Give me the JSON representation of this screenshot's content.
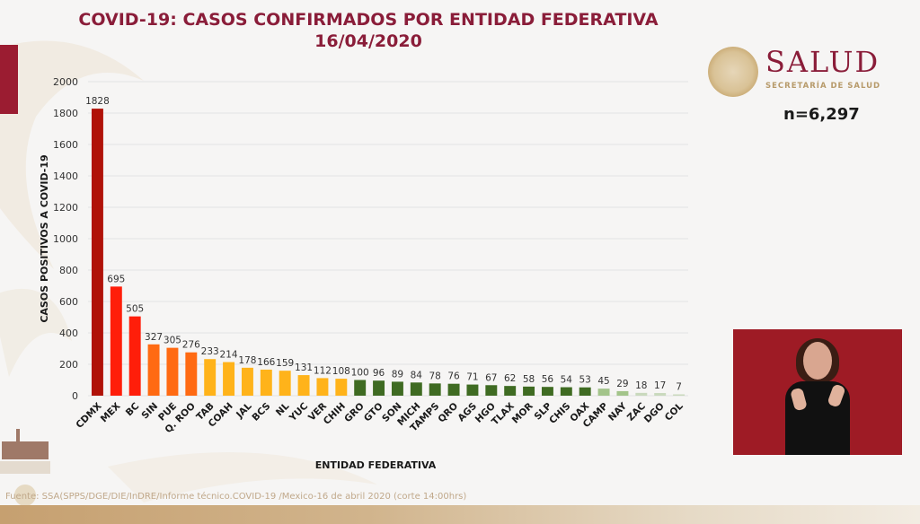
{
  "header": {
    "title_line1": "COVID-19: CASOS CONFIRMADOS POR ENTIDAD FEDERATIVA",
    "title_line2": "16/04/2020"
  },
  "logo": {
    "brand": "SALUD",
    "subtitle": "SECRETARÍA DE SALUD"
  },
  "total": "n=6,297",
  "footer": {
    "source": "Fuente: SSA(SPPS/DGE/DIE/InDRE/Informe técnico.COVID-19 /Mexico-16 de abril 2020 (corte 14:00hrs)"
  },
  "colors": {
    "brand": "#8a1d39",
    "dark_red": "#b01208",
    "red": "#ff1e0a",
    "orange": "#ff6a12",
    "yellow": "#ffb31a",
    "dark_green": "#3f6b22",
    "light_green": "#a3c48a",
    "pale_green": "#c9d9bd"
  },
  "chart_data": {
    "type": "bar",
    "title": "COVID-19: CASOS CONFIRMADOS POR ENTIDAD FEDERATIVA 16/04/2020",
    "xlabel": "ENTIDAD FEDERATIVA",
    "ylabel": "CASOS POSITIVOS A COVID-19",
    "ylim": [
      0,
      2000
    ],
    "yticks": [
      0,
      200,
      400,
      600,
      800,
      1000,
      1200,
      1400,
      1600,
      1800,
      2000
    ],
    "grid": true,
    "categories": [
      "CDMX",
      "MEX",
      "BC",
      "SIN",
      "PUE",
      "Q. ROO",
      "TAB",
      "COAH",
      "JAL",
      "BCS",
      "NL",
      "YUC",
      "VER",
      "CHIH",
      "GRO",
      "GTO",
      "SON",
      "MICH",
      "TAMPS",
      "QRO",
      "AGS",
      "HGO",
      "TLAX",
      "MOR",
      "SLP",
      "CHIS",
      "OAX",
      "CAMP",
      "NAY",
      "ZAC",
      "DGO",
      "COL"
    ],
    "values": [
      1828,
      695,
      505,
      327,
      305,
      276,
      233,
      214,
      178,
      166,
      159,
      131,
      112,
      108,
      100,
      96,
      89,
      84,
      78,
      76,
      71,
      67,
      62,
      58,
      56,
      54,
      53,
      45,
      29,
      18,
      17,
      7
    ],
    "bar_colors": [
      "dark_red",
      "red",
      "red",
      "orange",
      "orange",
      "orange",
      "yellow",
      "yellow",
      "yellow",
      "yellow",
      "yellow",
      "yellow",
      "yellow",
      "yellow",
      "dark_green",
      "dark_green",
      "dark_green",
      "dark_green",
      "dark_green",
      "dark_green",
      "dark_green",
      "dark_green",
      "dark_green",
      "dark_green",
      "dark_green",
      "dark_green",
      "dark_green",
      "light_green",
      "light_green",
      "pale_green",
      "pale_green",
      "pale_green"
    ],
    "data_labels": true
  }
}
